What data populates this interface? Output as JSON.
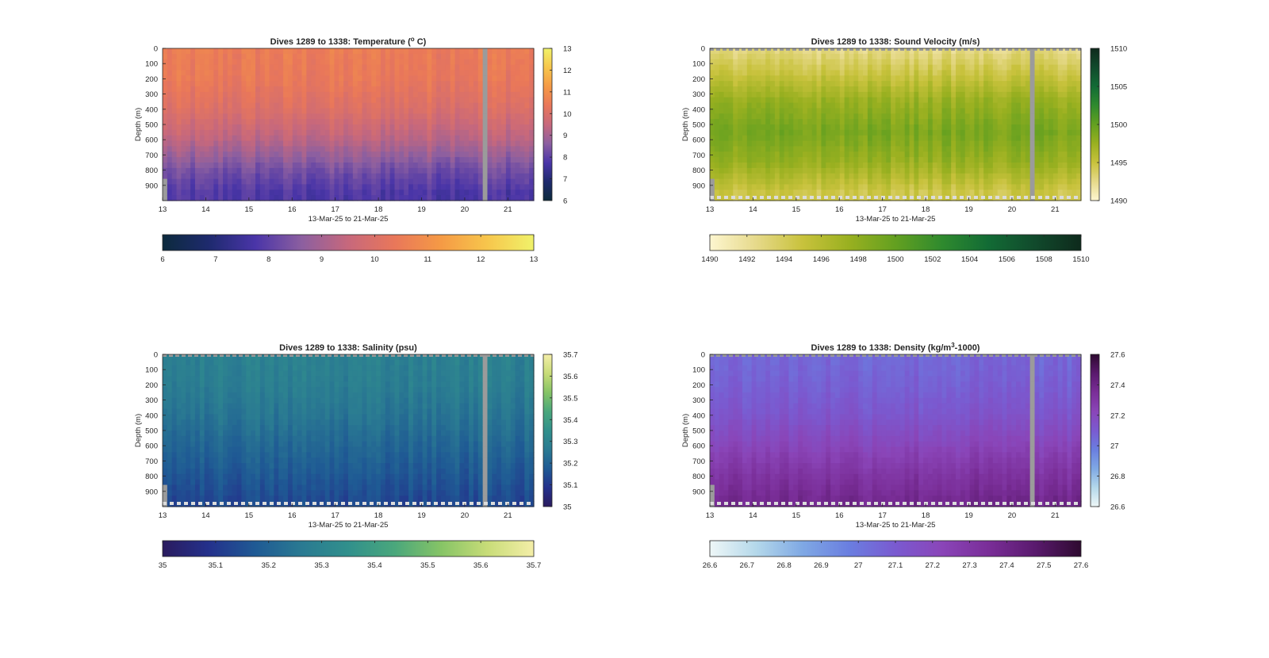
{
  "chart_data": [
    {
      "type": "heatmap",
      "title": "Dives 1289 to 1338: Temperature (° C)",
      "title_parts": [
        "Dives 1289 to 1338: Temperature (",
        "o",
        " C)"
      ],
      "xlabel": "13-Mar-25 to 21-Mar-25",
      "ylabel": "Depth (m)",
      "x_ticks": [
        "13",
        "14",
        "15",
        "16",
        "17",
        "18",
        "19",
        "20",
        "21"
      ],
      "x_range": [
        13,
        21.6
      ],
      "y_ticks": [
        "0",
        "100",
        "200",
        "300",
        "400",
        "500",
        "600",
        "700",
        "800",
        "900"
      ],
      "y_range": [
        0,
        1000
      ],
      "y_reversed": true,
      "colorbar_right_ticks": [
        "6",
        "7",
        "8",
        "9",
        "10",
        "11",
        "12",
        "13"
      ],
      "colorbar_bottom_ticks": [
        "6",
        "7",
        "8",
        "9",
        "10",
        "11",
        "12",
        "13"
      ],
      "clim": [
        6,
        13
      ],
      "colormap": [
        "#0c2a3d",
        "#1e2a6e",
        "#4a35a8",
        "#8c5fa0",
        "#c7687c",
        "#e9775a",
        "#f59a45",
        "#f7c64c",
        "#f0f26a"
      ],
      "profile": [
        {
          "depth": 0,
          "value": 10.5
        },
        {
          "depth": 200,
          "value": 10.4
        },
        {
          "depth": 400,
          "value": 10.0
        },
        {
          "depth": 600,
          "value": 9.3
        },
        {
          "depth": 800,
          "value": 8.3
        },
        {
          "depth": 950,
          "value": 7.8
        }
      ],
      "data_gap_days": [
        20.4,
        20.5
      ],
      "dashed_bottom_line": false
    },
    {
      "type": "heatmap",
      "title": "Dives 1289 to 1338: Sound Velocity (m/s)",
      "title_parts": [
        "Dives 1289 to 1338: Sound Velocity (m/s)",
        "",
        ""
      ],
      "xlabel": "13-Mar-25 to 21-Mar-25",
      "ylabel": "Depth (m)",
      "x_ticks": [
        "13",
        "14",
        "15",
        "16",
        "17",
        "18",
        "19",
        "20",
        "21"
      ],
      "x_range": [
        13,
        21.6
      ],
      "y_ticks": [
        "0",
        "100",
        "200",
        "300",
        "400",
        "500",
        "600",
        "700",
        "800",
        "900"
      ],
      "y_range": [
        0,
        1000
      ],
      "y_reversed": true,
      "colorbar_right_ticks": [
        "1490",
        "1495",
        "1500",
        "1505",
        "1510"
      ],
      "colorbar_bottom_ticks": [
        "1490",
        "1492",
        "1494",
        "1496",
        "1498",
        "1500",
        "1502",
        "1504",
        "1506",
        "1508",
        "1510"
      ],
      "clim": [
        1490,
        1510
      ],
      "colormap": [
        "#fdf6d0",
        "#e6d98a",
        "#c8c23c",
        "#99b020",
        "#63a020",
        "#2f8a2e",
        "#126b35",
        "#114a2c",
        "#0e2a1c"
      ],
      "profile": [
        {
          "depth": 0,
          "value": 1492.5
        },
        {
          "depth": 150,
          "value": 1494.5
        },
        {
          "depth": 350,
          "value": 1497.5
        },
        {
          "depth": 550,
          "value": 1499.0
        },
        {
          "depth": 750,
          "value": 1497.5
        },
        {
          "depth": 950,
          "value": 1494.5
        }
      ],
      "data_gap_days": [
        20.4,
        20.5
      ],
      "dashed_bottom_line": true
    },
    {
      "type": "heatmap",
      "title": "Dives 1289 to 1338: Salinity (psu)",
      "title_parts": [
        "Dives 1289 to 1338: Salinity (psu)",
        "",
        ""
      ],
      "xlabel": "13-Mar-25 to 21-Mar-25",
      "ylabel": "Depth (m)",
      "x_ticks": [
        "13",
        "14",
        "15",
        "16",
        "17",
        "18",
        "19",
        "20",
        "21"
      ],
      "x_range": [
        13,
        21.6
      ],
      "y_ticks": [
        "0",
        "100",
        "200",
        "300",
        "400",
        "500",
        "600",
        "700",
        "800",
        "900"
      ],
      "y_range": [
        0,
        1000
      ],
      "y_reversed": true,
      "colorbar_right_ticks": [
        "35",
        "35.1",
        "35.2",
        "35.3",
        "35.4",
        "35.5",
        "35.6",
        "35.7"
      ],
      "colorbar_bottom_ticks": [
        "35",
        "35.1",
        "35.2",
        "35.3",
        "35.4",
        "35.5",
        "35.6",
        "35.7"
      ],
      "clim": [
        35,
        35.7
      ],
      "colormap": [
        "#2a1b5e",
        "#24318c",
        "#1f5a94",
        "#2a7a92",
        "#31908c",
        "#4aa77c",
        "#86c466",
        "#c8dc78",
        "#f4eea8"
      ],
      "profile": [
        {
          "depth": 0,
          "value": 35.29
        },
        {
          "depth": 200,
          "value": 35.28
        },
        {
          "depth": 400,
          "value": 35.25
        },
        {
          "depth": 600,
          "value": 35.21
        },
        {
          "depth": 800,
          "value": 35.17
        },
        {
          "depth": 950,
          "value": 35.14
        }
      ],
      "data_gap_days": [
        20.4,
        20.5
      ],
      "dashed_bottom_line": true
    },
    {
      "type": "heatmap",
      "title": "Dives 1289 to 1338: Density (kg/m³-1000)",
      "title_parts": [
        "Dives 1289 to 1338: Density (kg/m",
        "3",
        "-1000)"
      ],
      "xlabel": "13-Mar-25 to 21-Mar-25",
      "ylabel": "Depth (m)",
      "x_ticks": [
        "13",
        "14",
        "15",
        "16",
        "17",
        "18",
        "19",
        "20",
        "21"
      ],
      "x_range": [
        13,
        21.6
      ],
      "y_ticks": [
        "0",
        "100",
        "200",
        "300",
        "400",
        "500",
        "600",
        "700",
        "800",
        "900"
      ],
      "y_range": [
        0,
        1000
      ],
      "y_reversed": true,
      "colorbar_right_ticks": [
        "26.6",
        "26.8",
        "27",
        "27.2",
        "27.4",
        "27.6"
      ],
      "colorbar_bottom_ticks": [
        "26.6",
        "26.7",
        "26.8",
        "26.9",
        "27",
        "27.1",
        "27.2",
        "27.3",
        "27.4",
        "27.5",
        "27.6"
      ],
      "clim": [
        26.6,
        27.6
      ],
      "colormap": [
        "#eef7f7",
        "#b4d8ea",
        "#7fa8e4",
        "#6a7ee0",
        "#7a5ad0",
        "#8a45b8",
        "#7a2e98",
        "#5a1a6e",
        "#2e0a30"
      ],
      "profile": [
        {
          "depth": 0,
          "value": 27.05
        },
        {
          "depth": 200,
          "value": 27.08
        },
        {
          "depth": 400,
          "value": 27.13
        },
        {
          "depth": 600,
          "value": 27.22
        },
        {
          "depth": 800,
          "value": 27.32
        },
        {
          "depth": 950,
          "value": 27.38
        }
      ],
      "data_gap_days": [
        20.4,
        20.5
      ],
      "dashed_bottom_line": true
    }
  ]
}
